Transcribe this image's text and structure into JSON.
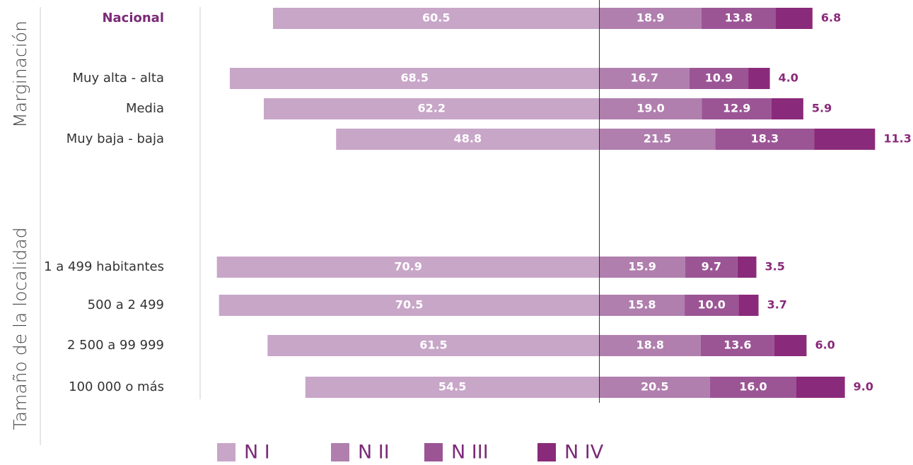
{
  "chart_data": {
    "type": "diverging-bar",
    "group_labels": [
      "Marginación",
      "Tamaño de la localidad"
    ],
    "categories": [
      "Nacional",
      "Muy alta - alta",
      "Media",
      "Muy baja - baja",
      "1 a 499 habitantes",
      "500 a 2 499",
      "2 500 a 99 999",
      "100 000 o más"
    ],
    "xlim": [
      -74,
      58
    ],
    "series": [
      {
        "name": "N I",
        "color": "#c8a6c8",
        "values": [
          60.5,
          68.5,
          62.2,
          48.8,
          70.9,
          70.5,
          61.5,
          54.5
        ],
        "value_labels": [
          "60.5",
          "68.5",
          "62.2",
          "48.8",
          "70.9",
          "70.5",
          "61.5",
          "54.5"
        ]
      },
      {
        "name": "N II",
        "color": "#b07fae",
        "values": [
          18.9,
          16.7,
          19.0,
          21.5,
          15.9,
          15.8,
          18.8,
          20.5
        ],
        "value_labels": [
          "18.9",
          "16.7",
          "19.0",
          "21.5",
          "15.9",
          "15.8",
          "18.8",
          "20.5"
        ]
      },
      {
        "name": "N III",
        "color": "#9b5595",
        "values": [
          13.8,
          10.9,
          12.9,
          18.3,
          9.7,
          10.0,
          13.6,
          16.0
        ],
        "value_labels": [
          "13.8",
          "10.9",
          "12.9",
          "18.3",
          "9.7",
          "10.0",
          "13.6",
          "16.0"
        ]
      },
      {
        "name": "N IV",
        "color": "#8a2a7a",
        "values": [
          6.8,
          4.0,
          5.9,
          11.3,
          3.5,
          3.7,
          6.0,
          9.0
        ],
        "value_labels": [
          "6.8",
          "4.0",
          "5.9",
          "11.3",
          "3.5",
          "3.7",
          "6.0",
          "9.0"
        ]
      }
    ]
  }
}
